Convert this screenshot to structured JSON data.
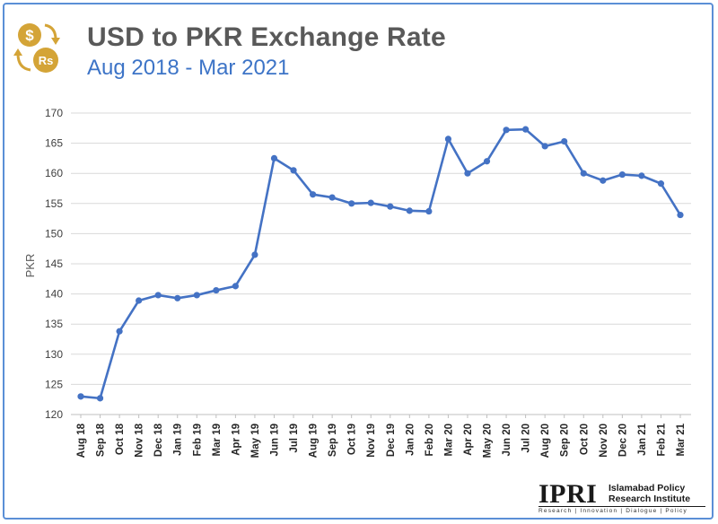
{
  "header": {
    "title": "USD to PKR Exchange Rate",
    "subtitle": "Aug 2018 - Mar 2021",
    "logo_icon": "currency-exchange-icon",
    "logo_symbols": [
      "$",
      "Rs"
    ]
  },
  "branding": {
    "mark": "IPRI",
    "name": "Islamabad Policy Research Institute",
    "tagline": "Research | Innovation | Dialogue | Policy"
  },
  "colors": {
    "line": "#4472c4",
    "grid": "#d9d9d9",
    "title": "#595959",
    "subtitle": "#3d74c7",
    "frame": "#5b8fd6",
    "logo": "#d4a437"
  },
  "chart_data": {
    "type": "line",
    "title": "USD to PKR Exchange Rate",
    "subtitle": "Aug 2018 - Mar 2021",
    "xlabel": "",
    "ylabel": "PKR",
    "ylim": [
      120,
      170
    ],
    "yticks": [
      120,
      125,
      130,
      135,
      140,
      145,
      150,
      155,
      160,
      165,
      170
    ],
    "grid": true,
    "legend": "none",
    "categories": [
      "Aug 18",
      "Sep 18",
      "Oct 18",
      "Nov 18",
      "Dec 18",
      "Jan 19",
      "Feb 19",
      "Mar 19",
      "Apr 19",
      "May 19",
      "Jun 19",
      "Jul 19",
      "Aug 19",
      "Sep 19",
      "Oct 19",
      "Nov 19",
      "Dec 19",
      "Jan 20",
      "Feb 20",
      "Mar 20",
      "Apr 20",
      "May 20",
      "Jun 20",
      "Jul 20",
      "Aug 20",
      "Sep 20",
      "Oct 20",
      "Nov 20",
      "Dec 20",
      "Jan 21",
      "Feb 21",
      "Mar 21"
    ],
    "series": [
      {
        "values": [
          123.0,
          122.7,
          133.8,
          138.9,
          139.8,
          139.3,
          139.8,
          140.6,
          141.3,
          146.5,
          162.5,
          160.5,
          156.5,
          156.0,
          155.0,
          155.1,
          154.5,
          153.8,
          153.7,
          165.7,
          160.0,
          162.0,
          167.2,
          167.3,
          164.5,
          165.3,
          160.0,
          158.8,
          159.8,
          159.6,
          158.3,
          153.1
        ]
      }
    ]
  }
}
